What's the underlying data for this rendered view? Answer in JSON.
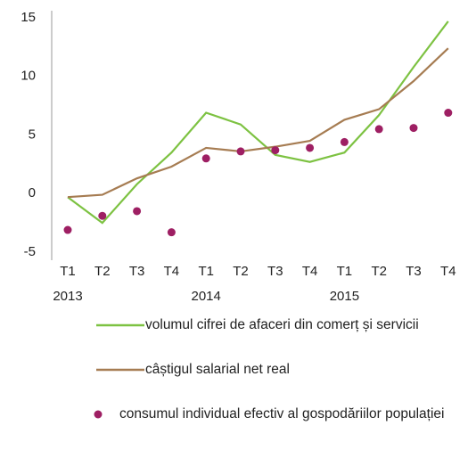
{
  "chart_data": {
    "type": "line",
    "categories": [
      "T1",
      "T2",
      "T3",
      "T4",
      "T1",
      "T2",
      "T3",
      "T4",
      "T1",
      "T2",
      "T3",
      "T4"
    ],
    "year_labels": [
      "2013",
      null,
      null,
      null,
      "2014",
      null,
      null,
      null,
      "2015",
      null,
      null,
      null
    ],
    "series": [
      {
        "name": "volumul cifrei de afaceri din comerț și servicii",
        "color": "#7dc242",
        "style": "line",
        "values": [
          -0.3,
          -2.5,
          0.8,
          3.5,
          6.9,
          5.9,
          3.3,
          2.7,
          3.5,
          6.7,
          10.8,
          14.7
        ]
      },
      {
        "name": "câștigul salarial net real",
        "color": "#a67c52",
        "style": "line",
        "values": [
          -0.3,
          -0.1,
          1.3,
          2.3,
          3.9,
          3.6,
          4.0,
          4.5,
          6.3,
          7.2,
          9.6,
          12.4
        ]
      },
      {
        "name": "consumul individual efectiv al gospodăriilor populației",
        "color": "#9e1f63",
        "style": "marker",
        "values": [
          -3.1,
          -1.9,
          -1.5,
          -3.3,
          3.0,
          3.6,
          3.7,
          3.9,
          4.4,
          5.5,
          5.6,
          6.9
        ]
      }
    ],
    "ylim": [
      -5,
      15
    ],
    "yticks": [
      -5,
      0,
      5,
      10,
      15
    ],
    "grid": false
  }
}
